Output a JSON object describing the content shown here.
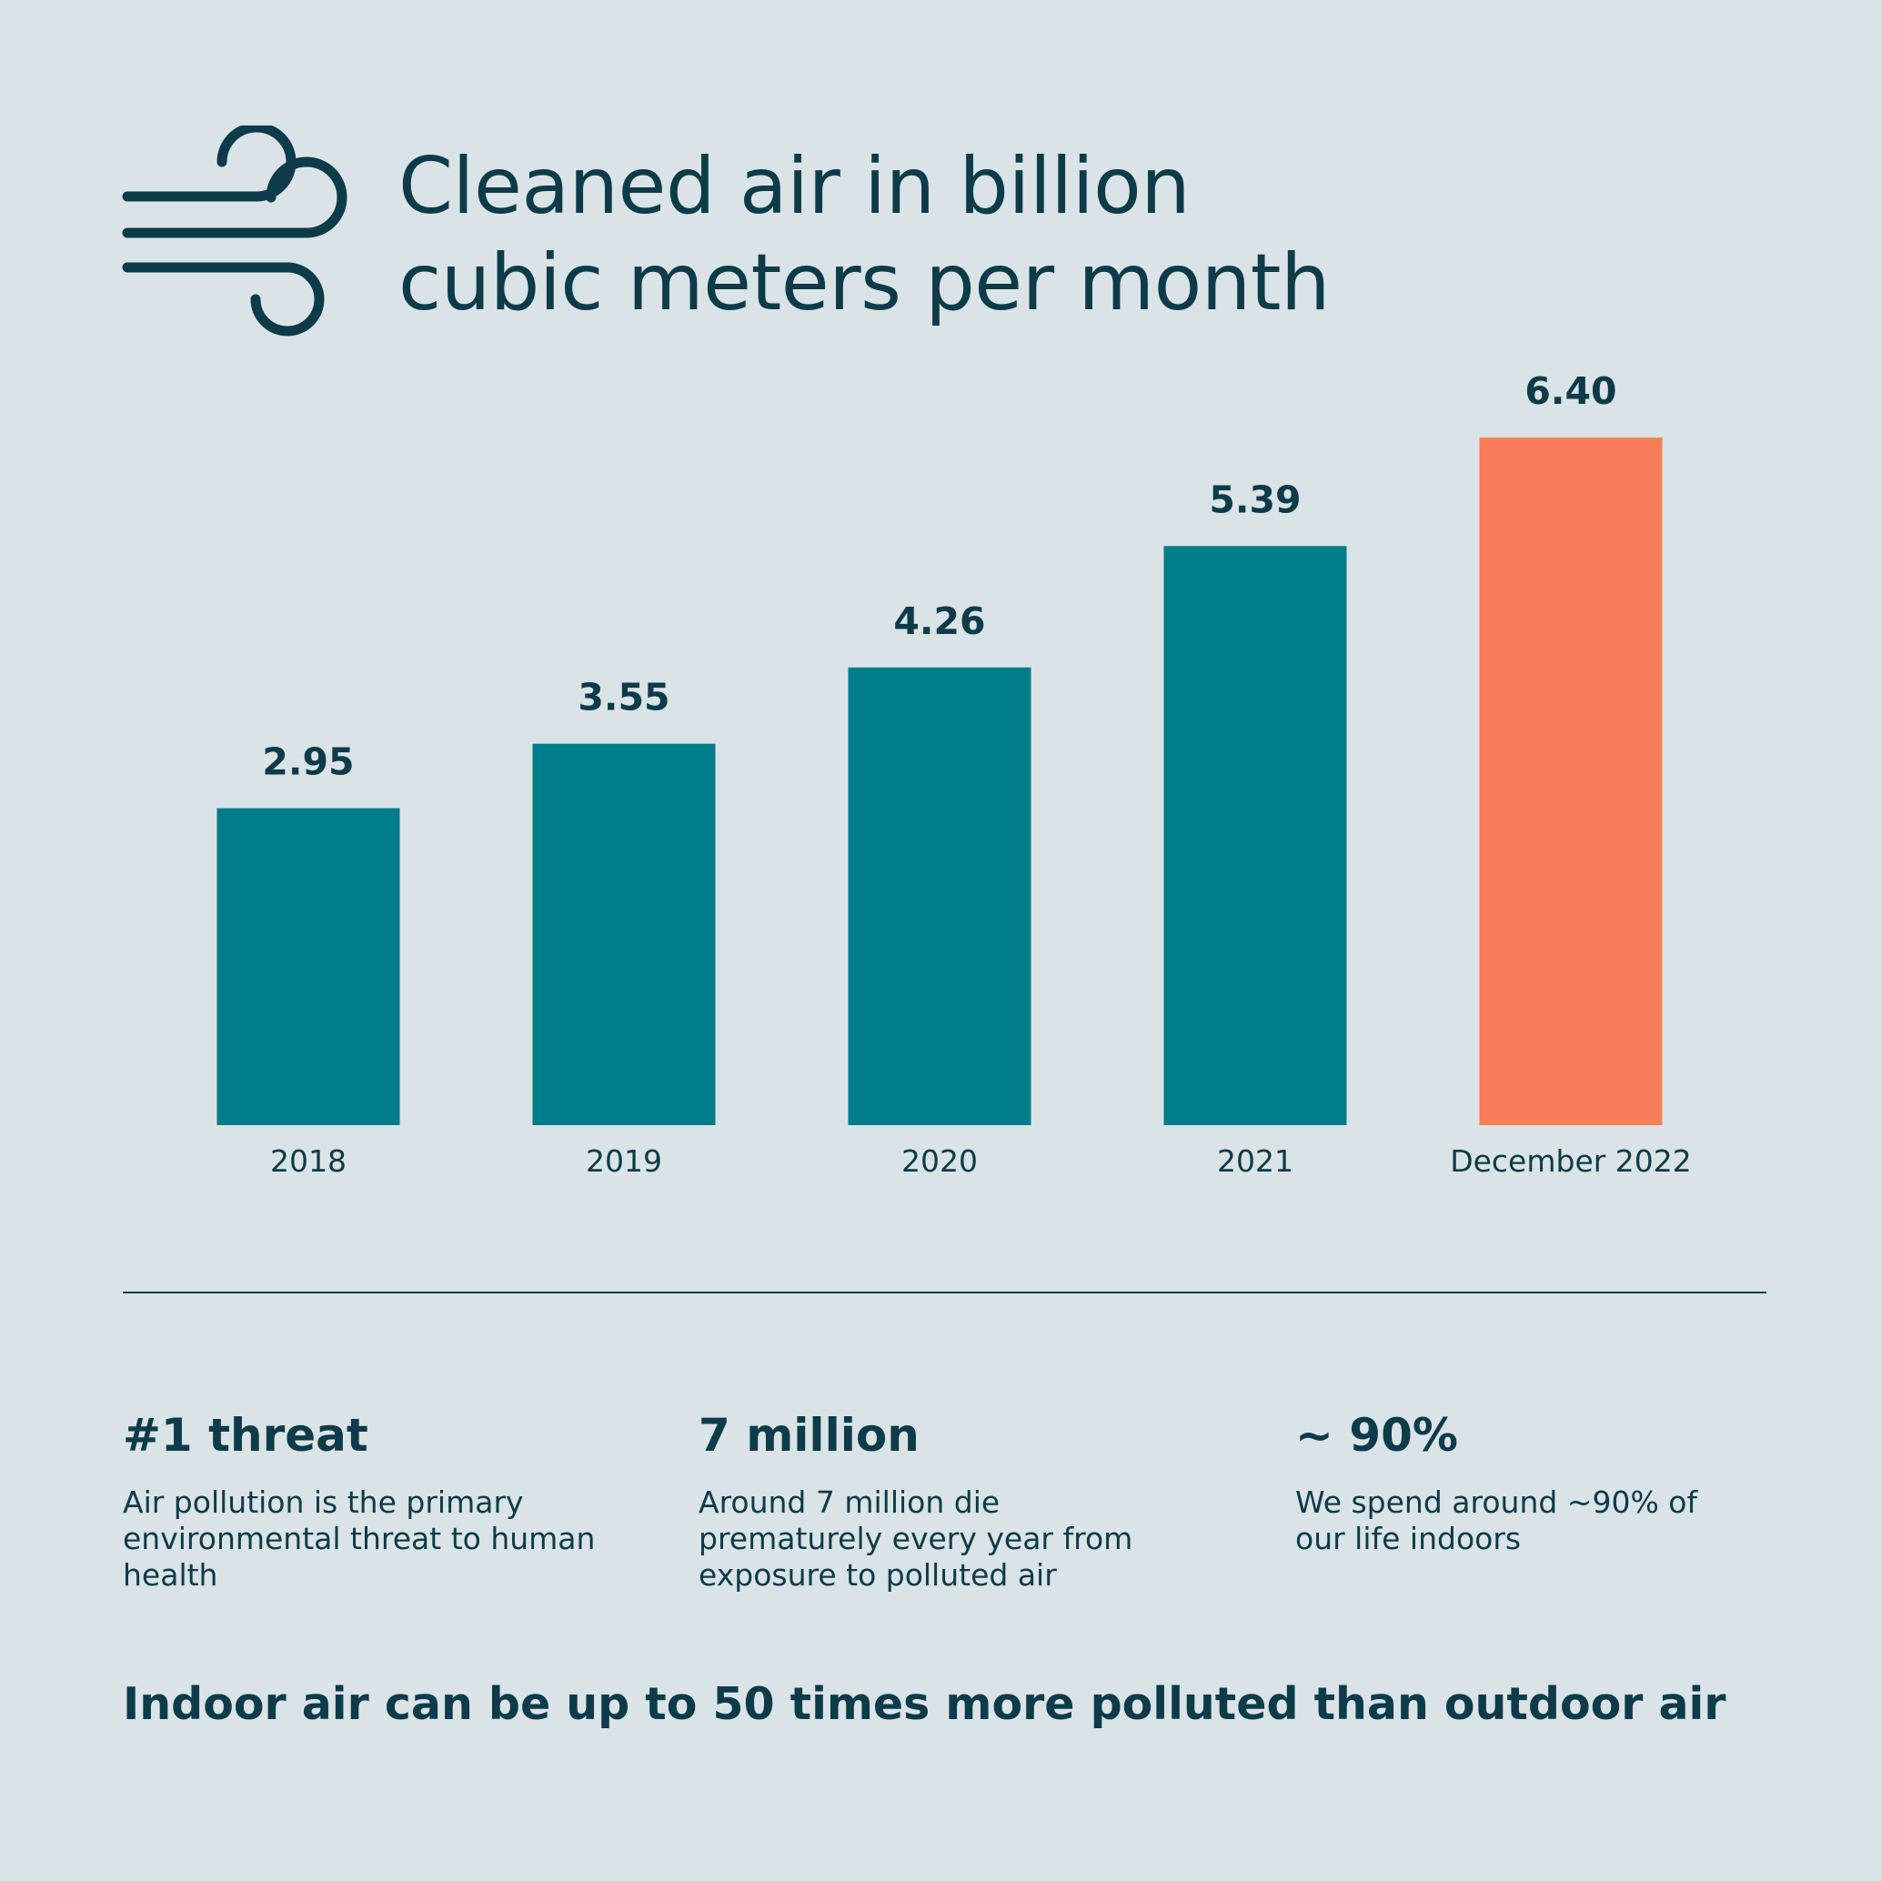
{
  "header": {
    "icon": "wind-icon",
    "title_line1": "Cleaned air in billion",
    "title_line2": "cubic meters per month"
  },
  "colors": {
    "background": "#dae3e5",
    "text": "#0d3b4a",
    "bar": "#007d8a",
    "highlight_bar": "#f77e58"
  },
  "chart_data": {
    "type": "bar",
    "title": "Cleaned air in billion cubic meters per month",
    "xlabel": "",
    "ylabel": "",
    "categories": [
      "2018",
      "2019",
      "2020",
      "2021",
      "December 2022"
    ],
    "values": [
      2.95,
      3.55,
      4.26,
      5.39,
      6.4
    ],
    "value_labels": [
      "2.95",
      "3.55",
      "4.26",
      "5.39",
      "6.40"
    ],
    "highlight_index": 4,
    "ylim": [
      0,
      6.4
    ],
    "grid": false,
    "legend": "none"
  },
  "stats": [
    {
      "headline": "#1 threat",
      "text": "Air pollution is the primary environmental threat to human health"
    },
    {
      "headline": "7 million",
      "text": "Around 7 million die prematurely every year from exposure to polluted air"
    },
    {
      "headline": "~ 90%",
      "text": "We spend around ~90% of our life indoors"
    }
  ],
  "footer": {
    "note": "Indoor air can be up to 50 times more polluted than outdoor air"
  }
}
